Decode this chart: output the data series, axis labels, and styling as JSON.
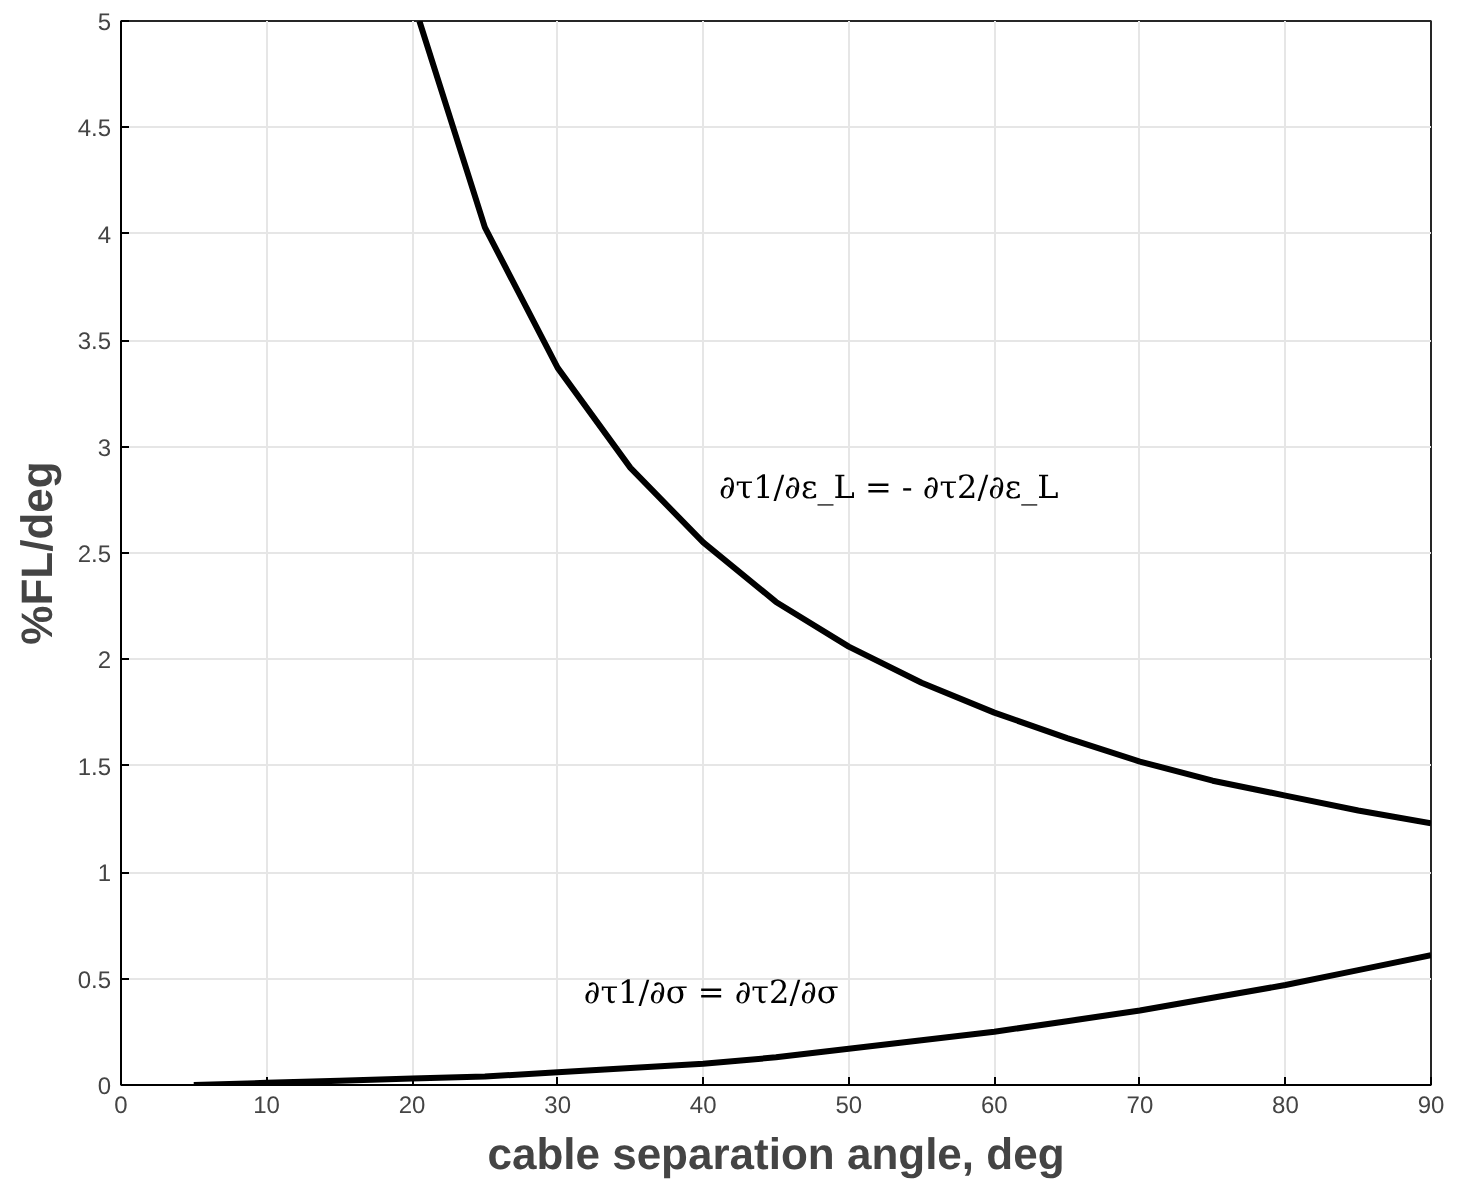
{
  "chart_data": {
    "type": "line",
    "xlabel": "cable separation angle, deg",
    "ylabel": "%FL/deg",
    "xlim": [
      0,
      90
    ],
    "ylim": [
      0,
      5
    ],
    "xticks": [
      0,
      10,
      20,
      30,
      40,
      50,
      60,
      70,
      80,
      90
    ],
    "yticks": [
      0,
      0.5,
      1,
      1.5,
      2,
      2.5,
      3,
      3.5,
      4,
      4.5,
      5
    ],
    "grid": true,
    "legend": false,
    "marker": "none",
    "line_style": "solid",
    "series": [
      {
        "name": "∂τ1/∂ε_L = - ∂τ2/∂ε_L",
        "color": "#000000",
        "x": [
          20.5,
          25,
          30,
          35,
          40,
          45,
          50,
          55,
          60,
          65,
          70,
          75,
          80,
          85,
          90
        ],
        "values": [
          5,
          4.03,
          3.37,
          2.9,
          2.55,
          2.27,
          2.06,
          1.89,
          1.75,
          1.63,
          1.52,
          1.43,
          1.36,
          1.29,
          1.23
        ]
      },
      {
        "name": "∂τ1/∂σ = ∂τ2/∂σ",
        "color": "#000000",
        "x": [
          5,
          10,
          15,
          20,
          25,
          30,
          35,
          40,
          45,
          50,
          55,
          60,
          65,
          70,
          75,
          80,
          85,
          90
        ],
        "values": [
          0,
          0.01,
          0.02,
          0.03,
          0.04,
          0.06,
          0.08,
          0.1,
          0.13,
          0.17,
          0.21,
          0.25,
          0.3,
          0.35,
          0.41,
          0.47,
          0.54,
          0.61
        ]
      }
    ]
  }
}
